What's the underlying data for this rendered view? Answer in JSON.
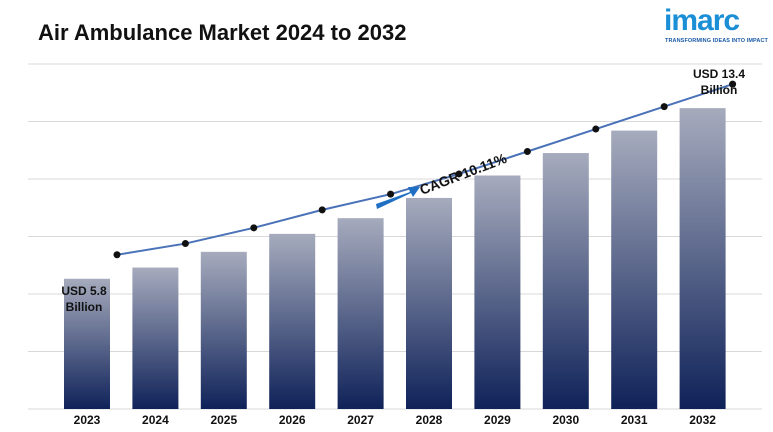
{
  "title": "Air Ambulance Market 2024 to 2032",
  "logo": {
    "name": "imarc",
    "tagline": "TRANSFORMING IDEAS INTO IMPACT"
  },
  "colors": {
    "line": "#4a72b8",
    "bar_top": "#a6abbd",
    "bar_bottom": "#0f2259",
    "grid": "#d8d8d8",
    "logo": "#1a8fd6",
    "arrow": "#1f6fc4"
  },
  "annotations": {
    "start_line1": "USD 5.8",
    "start_line2": "Billion",
    "end_line1": "USD 13.4",
    "end_line2": "Billion",
    "cagr": "CAGR 10.11%"
  },
  "chart_data": {
    "type": "bar",
    "categories": [
      "2023",
      "2024",
      "2025",
      "2026",
      "2027",
      "2028",
      "2029",
      "2030",
      "2031",
      "2032"
    ],
    "values": [
      5.8,
      6.3,
      7.0,
      7.8,
      8.5,
      9.4,
      10.4,
      11.4,
      12.4,
      13.4
    ],
    "line_overlay": true,
    "ylim": [
      0,
      15
    ],
    "grid": true
  }
}
